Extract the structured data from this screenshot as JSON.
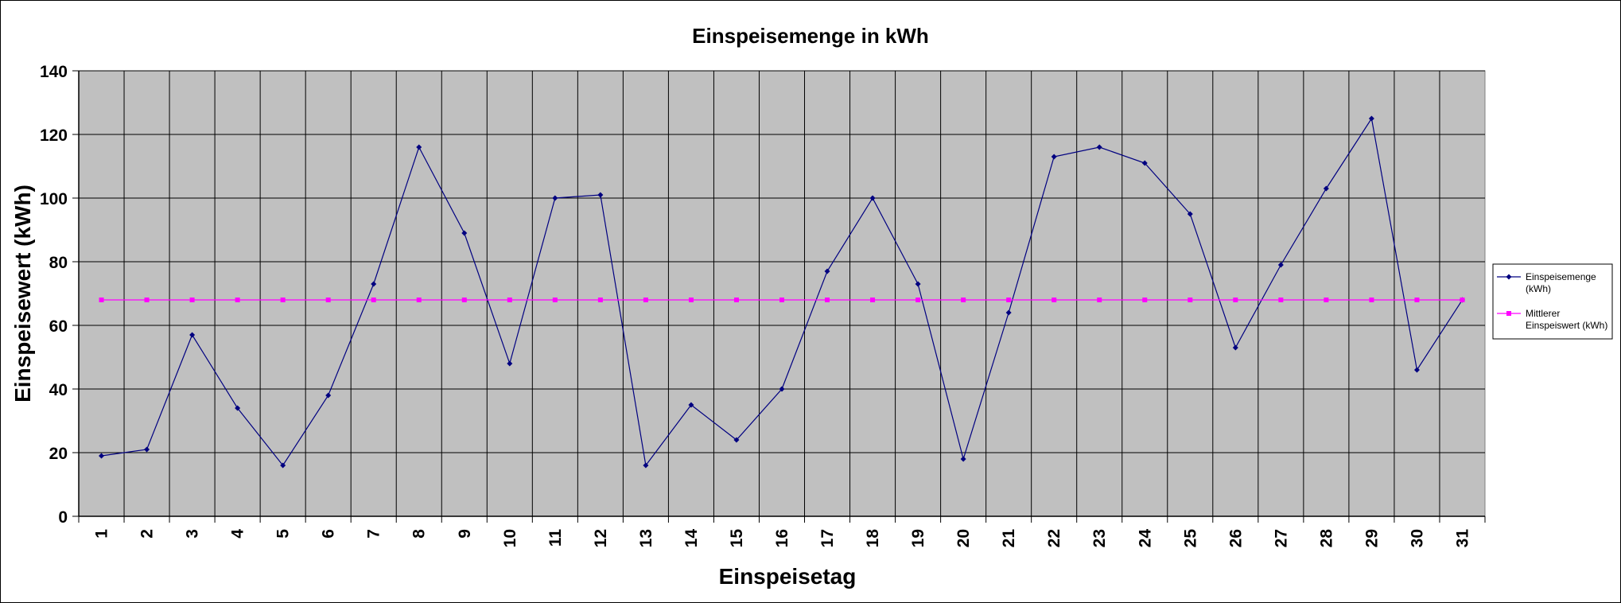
{
  "chart_data": {
    "type": "line",
    "title": "Einspeisemenge in kWh",
    "xlabel": "Einspeisetag",
    "ylabel": "Einspeisewert  (kWh)",
    "categories": [
      "1",
      "2",
      "3",
      "4",
      "5",
      "6",
      "7",
      "8",
      "9",
      "10",
      "11",
      "12",
      "13",
      "14",
      "15",
      "16",
      "17",
      "18",
      "19",
      "20",
      "21",
      "22",
      "23",
      "24",
      "25",
      "26",
      "27",
      "28",
      "29",
      "30",
      "31"
    ],
    "ylim": [
      0,
      140
    ],
    "yticks": [
      0,
      20,
      40,
      60,
      80,
      100,
      120,
      140
    ],
    "grid": true,
    "legend_position": "right",
    "colors": {
      "plot_background": "#c0c0c0",
      "series1": "#000080",
      "series2": "#ff00ff",
      "grid": "#000000"
    },
    "series": [
      {
        "name": "Einspeisemenge (kWh)",
        "legend_lines": [
          "Einspeisemenge",
          "(kWh)"
        ],
        "values": [
          19,
          21,
          57,
          34,
          16,
          38,
          73,
          116,
          89,
          48,
          100,
          101,
          16,
          35,
          24,
          40,
          77,
          100,
          73,
          18,
          64,
          113,
          116,
          111,
          95,
          53,
          79,
          103,
          125,
          46,
          68
        ]
      },
      {
        "name": "Mittlerer Einspeiswert (kWh)",
        "legend_lines": [
          "Mittlerer",
          "Einspeiswert (kWh)"
        ],
        "values": [
          68,
          68,
          68,
          68,
          68,
          68,
          68,
          68,
          68,
          68,
          68,
          68,
          68,
          68,
          68,
          68,
          68,
          68,
          68,
          68,
          68,
          68,
          68,
          68,
          68,
          68,
          68,
          68,
          68,
          68,
          68
        ]
      }
    ]
  }
}
